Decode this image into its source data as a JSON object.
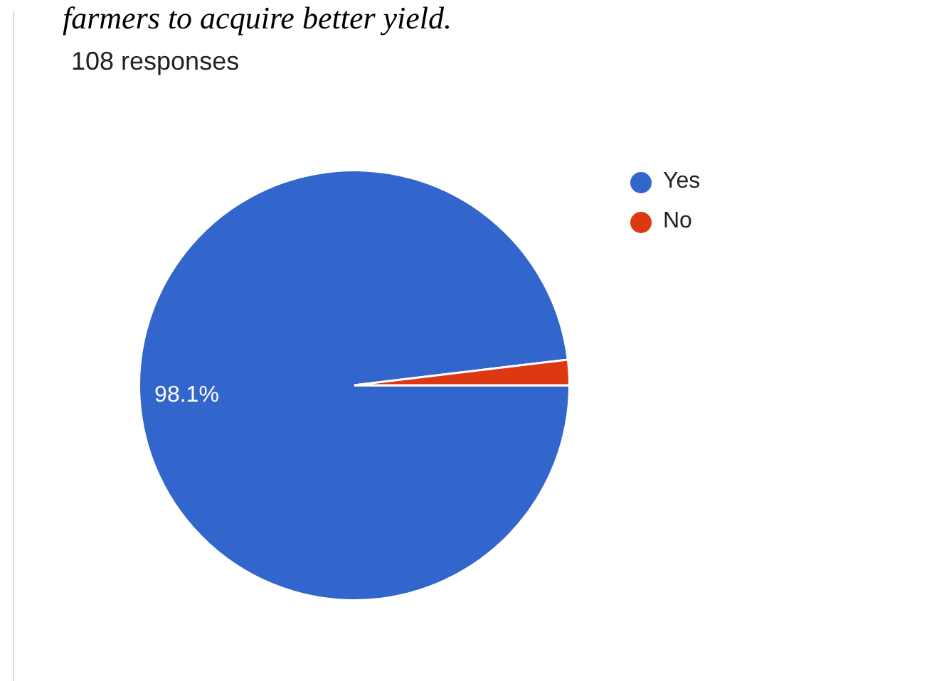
{
  "chart_data": {
    "type": "pie",
    "title": "farmers to acquire better yield.",
    "subtitle": "108 responses",
    "categories": [
      "Yes",
      "No"
    ],
    "values": [
      98.1,
      1.9
    ],
    "colors": [
      "#3366cc",
      "#dc3912"
    ],
    "value_labels": [
      "98.1%",
      null
    ],
    "legend": "top right"
  }
}
